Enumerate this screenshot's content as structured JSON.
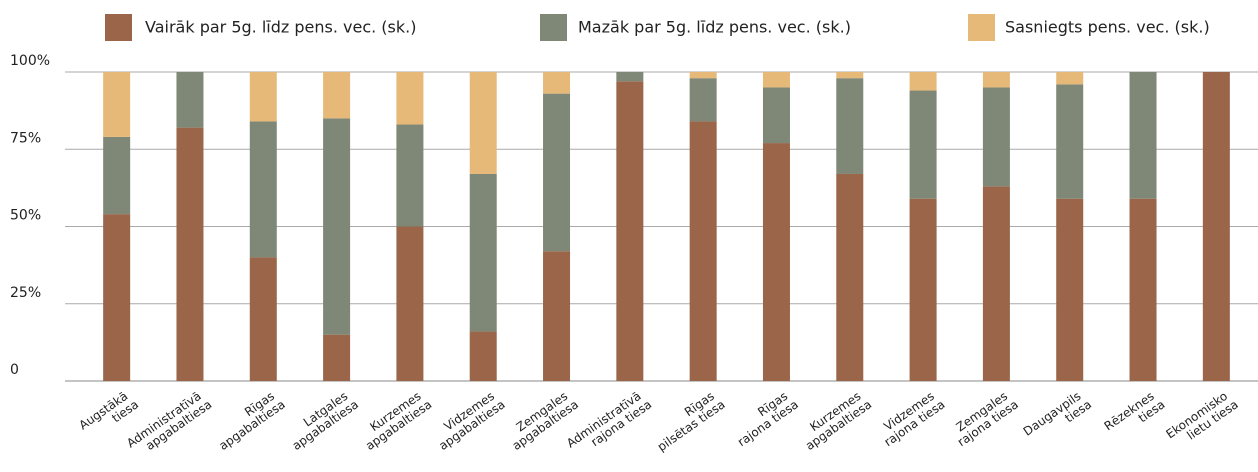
{
  "chart_data": {
    "type": "stacked_bar",
    "categories": [
      [
        "Augstākā",
        "tiesa"
      ],
      [
        "Administratīvā",
        "apgabaltiesa"
      ],
      [
        "Rīgas",
        "apgabaltiesa"
      ],
      [
        "Latgales",
        "apgabaltiesa"
      ],
      [
        "Kurzemes",
        "apgabaltiesa"
      ],
      [
        "Vidzemes",
        "apgabaltiesa"
      ],
      [
        "Zemgales",
        "apgabaltiesa"
      ],
      [
        "Administratīvā",
        "rajona tiesa"
      ],
      [
        "Rīgas",
        "pilsētas tiesa"
      ],
      [
        "Rīgas",
        "rajona tiesa"
      ],
      [
        "Kurzemes",
        "apgabaltiesa"
      ],
      [
        "Vidzemes",
        "rajona tiesa"
      ],
      [
        "Zemgales",
        "rajona tiesa"
      ],
      [
        "Daugavpils",
        "tiesa"
      ],
      [
        "Rēzeknes",
        "tiesa"
      ],
      [
        "Ekonomisko",
        "lietu tiesa"
      ]
    ],
    "series": [
      {
        "name": "Vairāk par 5g. līdz pens. vec. (sk.)",
        "color": "#9a6549",
        "values": [
          54,
          82,
          40,
          15,
          50,
          16,
          42,
          97,
          84,
          77,
          67,
          59,
          63,
          59,
          59,
          100
        ]
      },
      {
        "name": "Mazāk par 5g. līdz pens. vec. (sk.)",
        "color": "#7f8876",
        "values": [
          25,
          18,
          44,
          70,
          33,
          51,
          51,
          3,
          14,
          18,
          31,
          35,
          32,
          37,
          41,
          0
        ]
      },
      {
        "name": "Sasniegts pens. vec. (sk.)",
        "color": "#e6b978",
        "values": [
          21,
          0,
          16,
          15,
          17,
          33,
          7,
          0,
          2,
          5,
          2,
          6,
          5,
          4,
          0,
          0
        ]
      }
    ],
    "ylim": [
      0,
      100
    ],
    "yticks": [
      0,
      {
        "value": 25,
        "label": "25%"
      },
      {
        "value": 50,
        "label": "50%"
      },
      {
        "value": 75,
        "label": "75%"
      },
      {
        "value": 100,
        "label": "100%"
      }
    ],
    "grid": true
  }
}
